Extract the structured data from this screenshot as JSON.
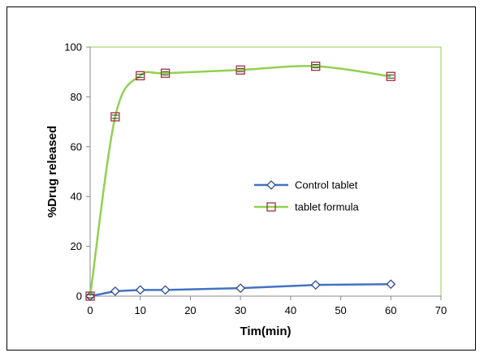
{
  "chart_data": {
    "type": "line",
    "title": "",
    "xlabel": "Tim(min)",
    "ylabel": "%Drug released",
    "xlim": [
      0,
      70
    ],
    "ylim": [
      0,
      100
    ],
    "xticks": [
      0,
      10,
      20,
      30,
      40,
      50,
      60,
      70
    ],
    "yticks": [
      0,
      20,
      40,
      60,
      80,
      100
    ],
    "grid": false,
    "legend_position": "center-right",
    "x": [
      0,
      5,
      10,
      15,
      30,
      45,
      60
    ],
    "series": [
      {
        "name": "Control tablet",
        "values": [
          0,
          2,
          2.5,
          2.5,
          3.2,
          4.5,
          4.8
        ],
        "line_color": "#4472C4",
        "marker": "diamond",
        "marker_color": "#2F4F8F"
      },
      {
        "name": "tablet formula",
        "values": [
          0,
          72,
          88.5,
          89.5,
          90.8,
          92.3,
          88.2
        ],
        "line_color": "#92D050",
        "marker": "square",
        "marker_color": "#A0303A"
      }
    ],
    "plot_border_color": "#92D050"
  }
}
